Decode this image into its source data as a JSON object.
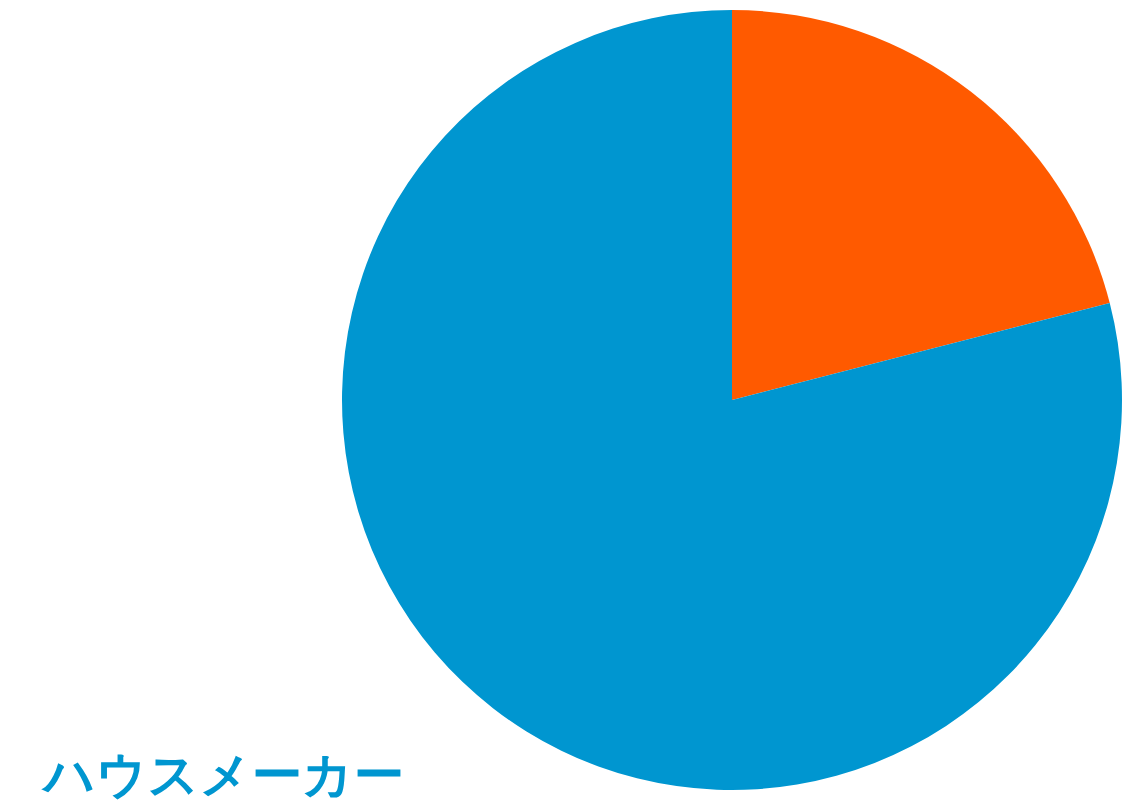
{
  "chart_data": {
    "type": "pie",
    "categories": [
      null,
      "ハウスメーカー"
    ],
    "values": [
      21,
      79
    ],
    "colors": [
      "#ff5a00",
      "#0096d0"
    ]
  }
}
